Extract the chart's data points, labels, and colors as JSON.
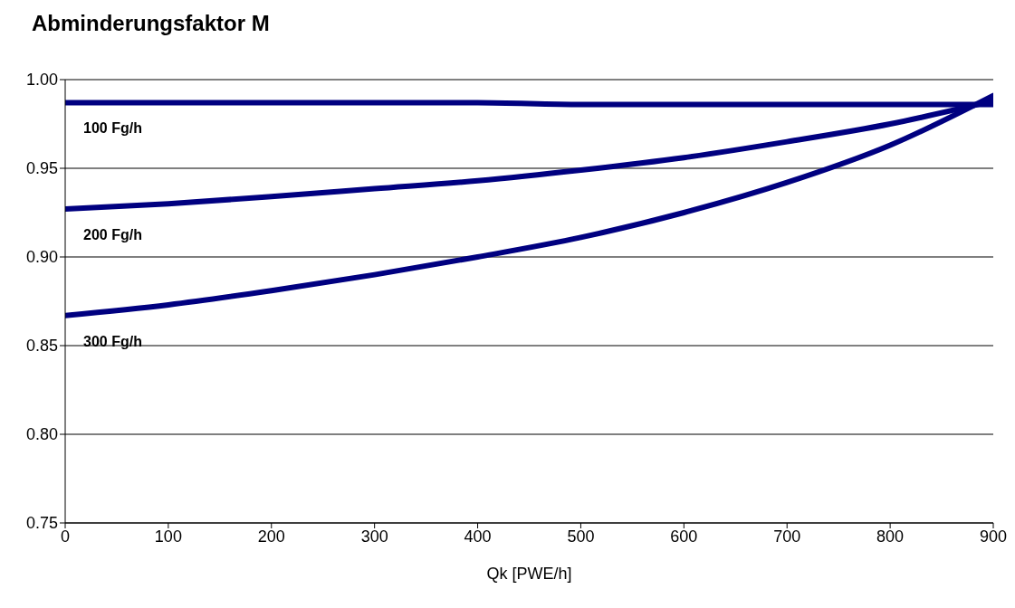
{
  "chart_data": {
    "type": "line",
    "title": "Abminderungsfaktor M",
    "xlabel": "Qk [PWE/h]",
    "x": [
      0,
      100,
      200,
      300,
      400,
      500,
      600,
      700,
      800,
      900
    ],
    "series": [
      {
        "name": "100 Fg/h",
        "color": "#000080",
        "values": [
          0.987,
          0.987,
          0.987,
          0.987,
          0.987,
          0.986,
          0.986,
          0.986,
          0.986,
          0.986
        ]
      },
      {
        "name": "200 Fg/h",
        "color": "#000080",
        "values": [
          0.927,
          0.93,
          0.934,
          0.9385,
          0.943,
          0.949,
          0.956,
          0.965,
          0.975,
          0.988
        ]
      },
      {
        "name": "300 Fg/h",
        "color": "#000080",
        "values": [
          0.867,
          0.873,
          0.881,
          0.89,
          0.9,
          0.911,
          0.925,
          0.942,
          0.963,
          0.991
        ]
      }
    ],
    "xlim": [
      0,
      900
    ],
    "xticks": [
      0,
      100,
      200,
      300,
      400,
      500,
      600,
      700,
      800,
      900
    ],
    "ylim": [
      0.75,
      1.0
    ],
    "yticks": [
      0.75,
      {
        "value": 0.8,
        "label": "0.80"
      },
      0.85,
      {
        "value": 0.9,
        "label": "0.90"
      },
      0.95,
      {
        "value": 1,
        "label": "1.00"
      }
    ],
    "grid": "y",
    "legend": false,
    "marker": "none",
    "line_style": "solid"
  }
}
